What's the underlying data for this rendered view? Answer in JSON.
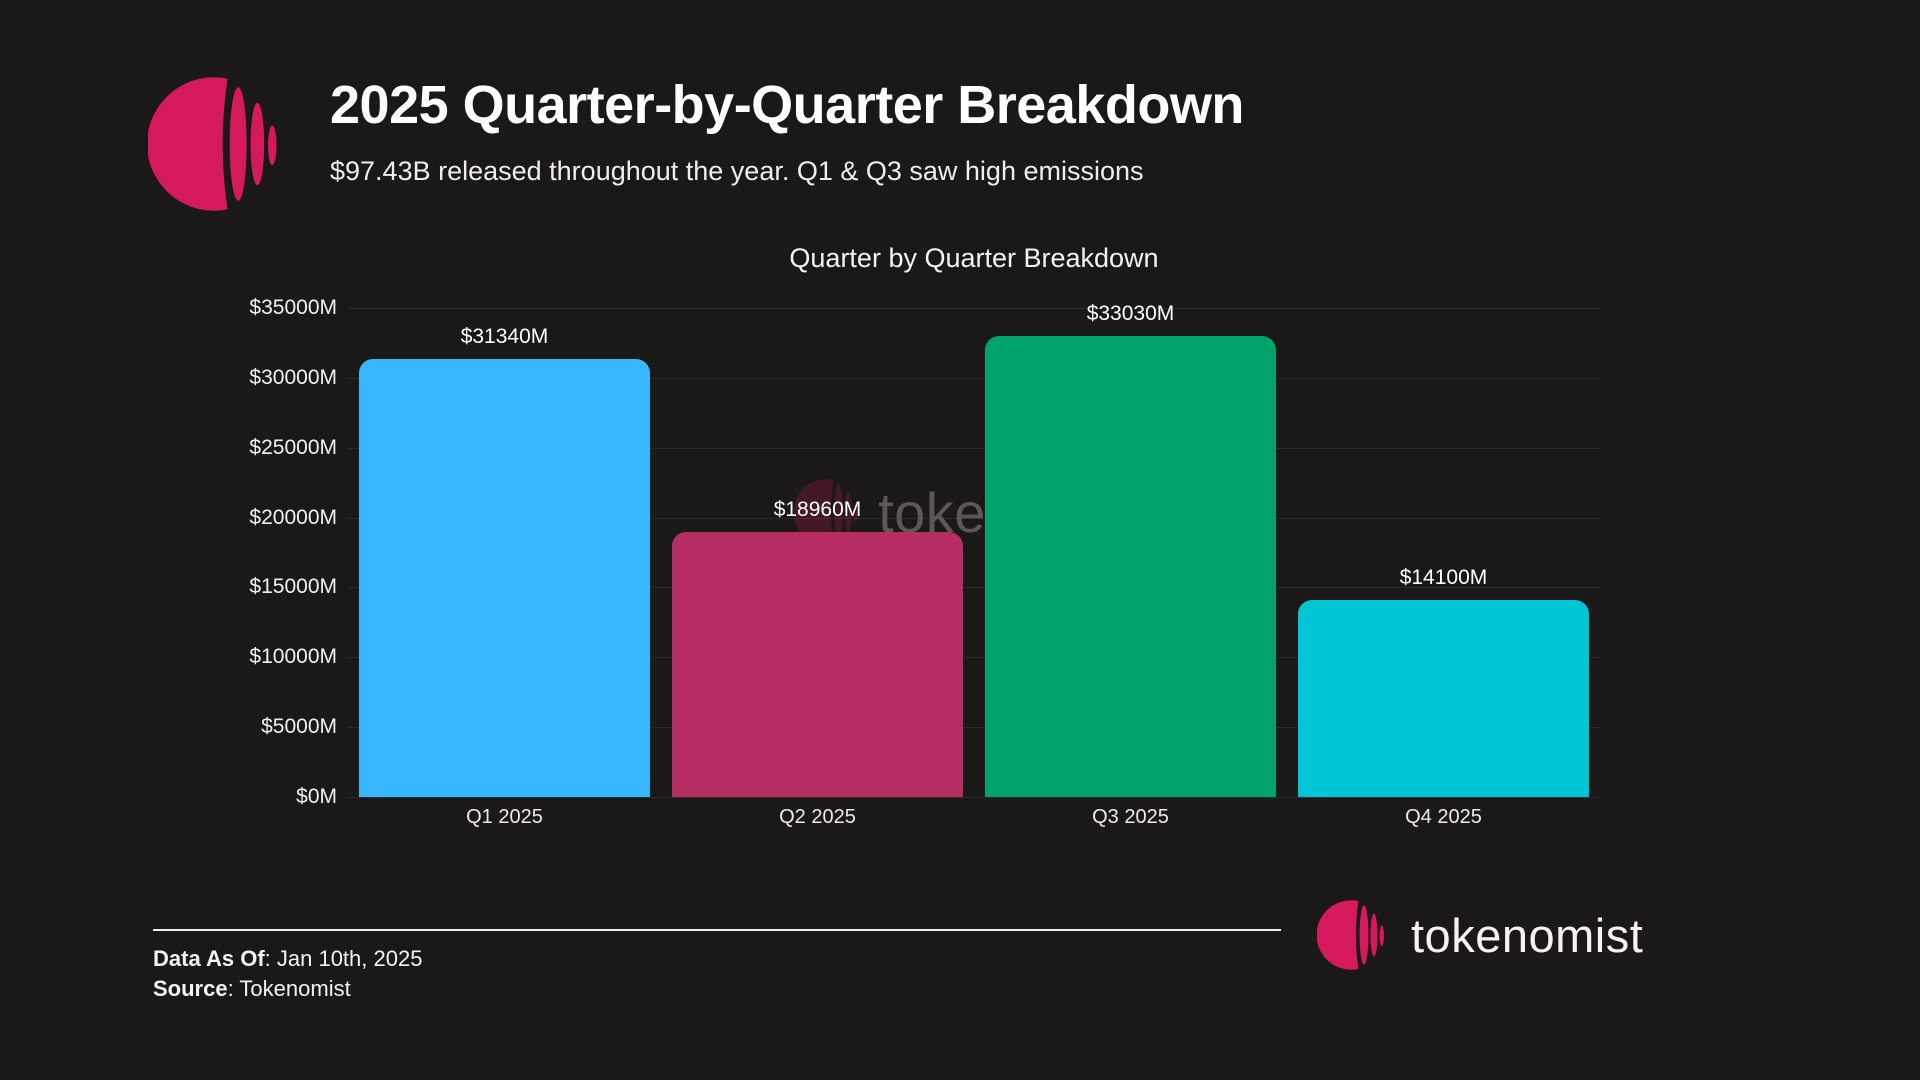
{
  "header": {
    "title": "2025 Quarter-by-Quarter Breakdown",
    "subtitle": "$97.43B released throughout the year. Q1 & Q3 saw high emissions"
  },
  "chart_data": {
    "type": "bar",
    "title": "Quarter by Quarter Breakdown",
    "categories": [
      "Q1 2025",
      "Q2 2025",
      "Q3 2025",
      "Q4 2025"
    ],
    "values": [
      31340,
      18960,
      33030,
      14100
    ],
    "value_labels": [
      "$31340M",
      "$18960M",
      "$33030M",
      "$14100M"
    ],
    "bar_colors": [
      "#38b6fc",
      "#b52d62",
      "#00a36c",
      "#00c5d4"
    ],
    "xlabel": "",
    "ylabel": "",
    "ylim": [
      0,
      35000
    ],
    "y_ticks": [
      0,
      5000,
      10000,
      15000,
      20000,
      25000,
      30000,
      35000
    ],
    "y_tick_labels": [
      "$0M",
      "$5000M",
      "$10000M",
      "$15000M",
      "$20000M",
      "$25000M",
      "$30000M",
      "$35000M"
    ],
    "grid": true,
    "legend": false
  },
  "watermark": {
    "text": "tokenomist"
  },
  "footer": {
    "data_as_of_label": "Data As Of",
    "data_as_of_value": ": Jan 10th, 2025",
    "source_label": "Source",
    "source_value": ": Tokenomist",
    "brand": "tokenomist"
  },
  "colors": {
    "background": "#1b1818",
    "brand_pink": "#d6195c",
    "gridline": "#2d2a2b",
    "watermark_text": "#5b5658"
  }
}
